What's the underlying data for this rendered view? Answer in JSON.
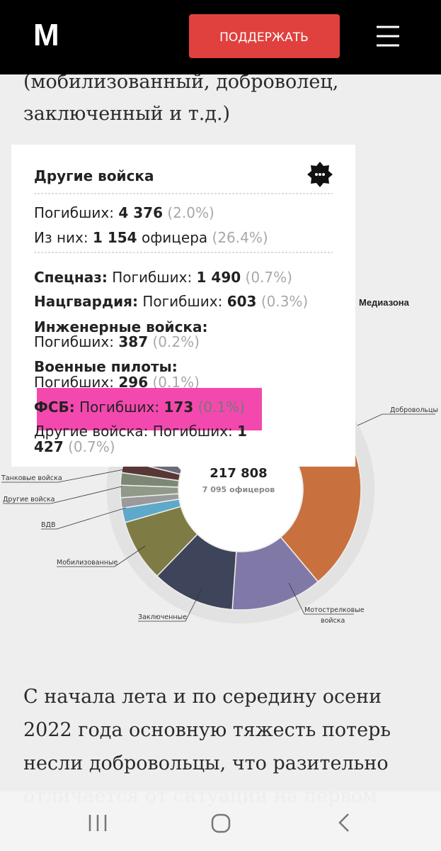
{
  "header": {
    "logo": "M",
    "button": "ПОДДЕРЖАТЬ"
  },
  "intro_text": [
    "(мобилизованный, доброволец,",
    "заключенный и т.д.)"
  ],
  "tooltip": {
    "title": "Другие войска",
    "total": {
      "label": "Погибших:",
      "value": "4 376",
      "percent": "(2.0%)"
    },
    "officers": {
      "label": "Из них:",
      "value": "1 154",
      "suffix": "офицера",
      "percent": "(26.4%)"
    },
    "rows": [
      {
        "name": "Спецназ:",
        "label": "Погибших:",
        "value": "1 490",
        "percent": "(0.7%)"
      },
      {
        "name": "Нацгвардия:",
        "label": "Погибших:",
        "value": "603",
        "percent": "(0.3%)"
      },
      {
        "name": "Инженерные войска:",
        "label": "Погибших:",
        "value": "387",
        "percent": "(0.2%)"
      },
      {
        "name": "Военные пилоты:",
        "label": "Погибших:",
        "value": "296",
        "percent": "(0.1%)"
      },
      {
        "name": "ФСБ:",
        "label": "Погибших:",
        "value": "173",
        "percent": "(0.1%)"
      },
      {
        "name": "Другие войска:",
        "label": "Погибших:",
        "value_line1": "1",
        "value_line2": "427",
        "percent": "(0.7%)"
      }
    ]
  },
  "chart": {
    "source": "Медиазона",
    "center_total": "217 808",
    "center_officers": "7 095 офицеров",
    "labels": [
      "Добровольцы",
      "Танковые войска",
      "Другие войска",
      "ВДВ",
      "Мобилизованные",
      "Заключенные",
      "Мотострелковые",
      "войска"
    ]
  },
  "body_text": [
    "С начала лета и по середину осени",
    "2022 года основную тяжесть потерь",
    "несли добровольцы, что разительно",
    "отличается от ситуации на первом"
  ]
}
